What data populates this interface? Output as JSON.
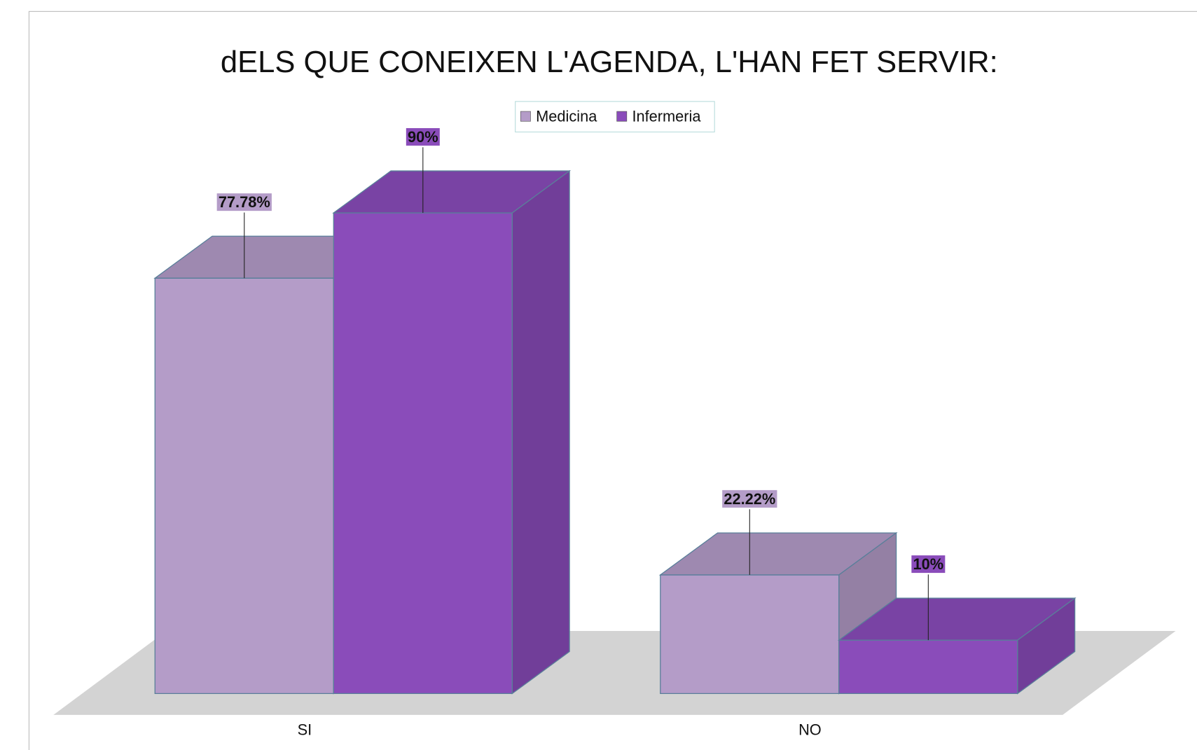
{
  "chart_data": {
    "type": "bar3d",
    "title": "dELS QUE CONEIXEN L'AGENDA, L'HAN FET SERVIR:",
    "categories": [
      "SI",
      "NO"
    ],
    "series": [
      {
        "name": "Medicina",
        "color": "#b49cc8",
        "values": [
          77.78,
          22.22
        ],
        "value_labels": [
          "77.78%",
          "22.22%"
        ]
      },
      {
        "name": "Infermeria",
        "color": "#8a4cba",
        "values": [
          90,
          10
        ],
        "value_labels": [
          "90%",
          "10%"
        ]
      }
    ],
    "legend": "top"
  }
}
